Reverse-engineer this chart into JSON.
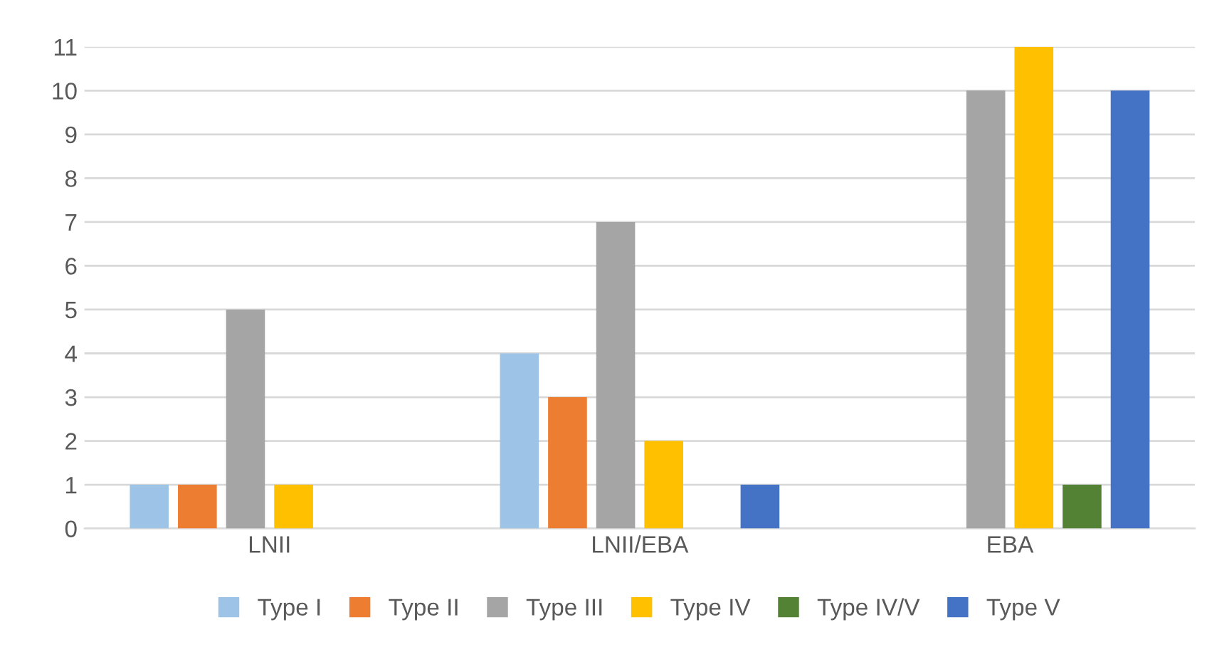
{
  "chart_data": {
    "type": "bar",
    "categories": [
      "LNII",
      "LNII/EBA",
      "EBA"
    ],
    "series": [
      {
        "name": "Type I",
        "color": "#9dc3e6",
        "values": [
          1,
          4,
          0
        ]
      },
      {
        "name": "Type II",
        "color": "#ed7d31",
        "values": [
          1,
          3,
          0
        ]
      },
      {
        "name": "Type III",
        "color": "#a5a5a5",
        "values": [
          5,
          7,
          10
        ]
      },
      {
        "name": "Type IV",
        "color": "#ffc000",
        "values": [
          1,
          2,
          11
        ]
      },
      {
        "name": "Type IV/V",
        "color": "#548235",
        "values": [
          0,
          0,
          1
        ]
      },
      {
        "name": "Type V",
        "color": "#4472c4",
        "values": [
          0,
          1,
          10
        ]
      }
    ],
    "ylim": [
      0,
      11
    ],
    "yticks": [
      0,
      1,
      2,
      3,
      4,
      5,
      6,
      7,
      8,
      9,
      10,
      11
    ],
    "grid": "y",
    "legend": "bottom"
  }
}
